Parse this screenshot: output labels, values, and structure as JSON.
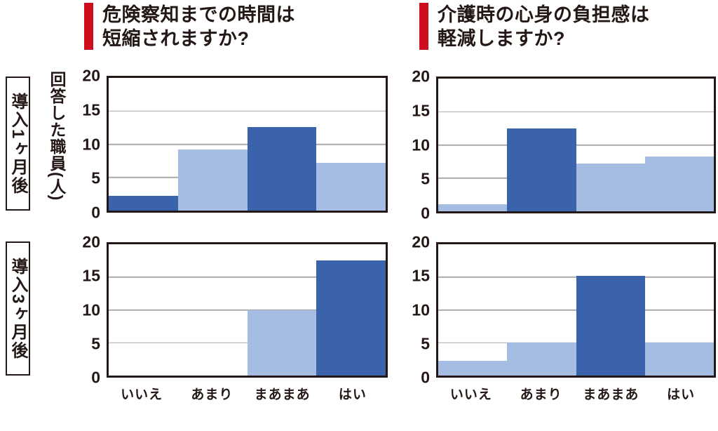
{
  "colors": {
    "accent_red": "#ce0e1f",
    "bar_dark": "#3a63ab",
    "bar_light": "#a5bde2",
    "text": "#231815",
    "grid": "#a9a9a9",
    "plot_border": "#231815"
  },
  "questions": [
    {
      "line1": "危険察知までの時間は",
      "line2": "短縮されますか?"
    },
    {
      "line1": "介護時の心身の負担感は",
      "line2": "軽減しますか?"
    }
  ],
  "row_labels": [
    "導入1ヶ月後",
    "導入3ヶ月後"
  ],
  "y_axis_title": "回答した職員(人)",
  "chart_data": [
    {
      "type": "bar",
      "position": "top-left",
      "row": "導入1ヶ月後",
      "question": "危険察知までの時間は短縮されますか?",
      "categories": [
        "いいえ",
        "あまり",
        "まあまあ",
        "はい"
      ],
      "values": [
        2.2,
        9.2,
        12.6,
        7.2
      ],
      "bar_colors": [
        "dark",
        "light",
        "dark",
        "light"
      ],
      "ylabel": "回答した職員(人)",
      "ylim": [
        0,
        20
      ],
      "yticks": [
        0,
        5,
        10,
        15,
        20
      ],
      "grid": true,
      "show_x_labels": false
    },
    {
      "type": "bar",
      "position": "top-right",
      "row": "導入1ヶ月後",
      "question": "介護時の心身の負担感は軽減しますか?",
      "categories": [
        "いいえ",
        "あまり",
        "まあまあ",
        "はい"
      ],
      "values": [
        1.1,
        12.5,
        7.2,
        8.3
      ],
      "bar_colors": [
        "light",
        "dark",
        "light",
        "light"
      ],
      "ylim": [
        0,
        20
      ],
      "yticks": [
        0,
        5,
        10,
        15,
        20
      ],
      "grid": true,
      "show_x_labels": false
    },
    {
      "type": "bar",
      "position": "bottom-left",
      "row": "導入3ヶ月後",
      "question": "危険察知までの時間は短縮されますか?",
      "categories": [
        "いいえ",
        "あまり",
        "まあまあ",
        "はい"
      ],
      "values": [
        0,
        0,
        10,
        17.5
      ],
      "bar_colors": [
        "light",
        "light",
        "light",
        "dark"
      ],
      "ylim": [
        0,
        20
      ],
      "yticks": [
        0,
        5,
        10,
        15,
        20
      ],
      "grid": true,
      "show_x_labels": true
    },
    {
      "type": "bar",
      "position": "bottom-right",
      "row": "導入3ヶ月後",
      "question": "介護時の心身の負担感は軽減しますか?",
      "categories": [
        "いいえ",
        "あまり",
        "まあまあ",
        "はい"
      ],
      "values": [
        2.3,
        5,
        15.2,
        5
      ],
      "bar_colors": [
        "light",
        "light",
        "dark",
        "light"
      ],
      "ylim": [
        0,
        20
      ],
      "yticks": [
        0,
        5,
        10,
        15,
        20
      ],
      "grid": true,
      "show_x_labels": true
    }
  ]
}
